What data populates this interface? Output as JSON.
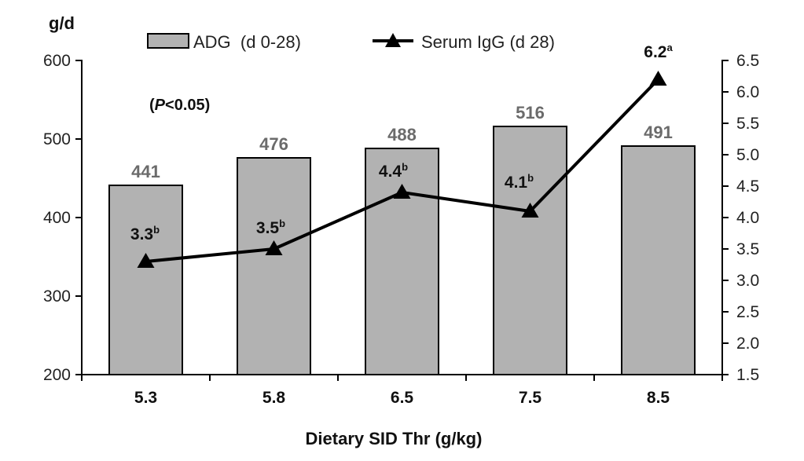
{
  "chart_data": {
    "type": "bar+line",
    "title": "",
    "categories": [
      "5.3",
      "5.8",
      "6.5",
      "7.5",
      "8.5"
    ],
    "xlabel": "Dietary SID Thr (g/kg)",
    "y_left": {
      "unit_label": "g/d",
      "range": [
        200,
        600
      ],
      "ticks": [
        "600",
        "500",
        "400",
        "300",
        "200"
      ],
      "tick_values": [
        600,
        500,
        400,
        300,
        200
      ]
    },
    "y_right": {
      "range": [
        1.5,
        6.5
      ],
      "ticks": [
        "6.5",
        "6.0",
        "5.5",
        "5.0",
        "4.5",
        "4.0",
        "3.5",
        "3.0",
        "2.5",
        "2.0",
        "1.5"
      ],
      "tick_values": [
        6.5,
        6.0,
        5.5,
        5.0,
        4.5,
        4.0,
        3.5,
        3.0,
        2.5,
        2.0,
        1.5
      ]
    },
    "series": [
      {
        "name": "ADG  (d 0-28)",
        "type": "bar",
        "axis": "left",
        "values": [
          441,
          476,
          488,
          516,
          491
        ],
        "labels": [
          "441",
          "476",
          "488",
          "516",
          "491"
        ],
        "color": "#b2b2b2"
      },
      {
        "name": "Serum IgG (d 28)",
        "type": "line",
        "axis": "right",
        "marker": "triangle",
        "values": [
          3.3,
          3.5,
          4.4,
          4.1,
          6.2
        ],
        "labels": [
          "3.3",
          "3.5",
          "4.4",
          "4.1",
          "6.2"
        ],
        "superscripts": [
          "b",
          "b",
          "b",
          "b",
          "a"
        ],
        "color": "#000000"
      }
    ],
    "annotation": {
      "prefix": "(",
      "italic": "P",
      "suffix": "<0.05)"
    },
    "legend_position": "top",
    "grid": false
  }
}
